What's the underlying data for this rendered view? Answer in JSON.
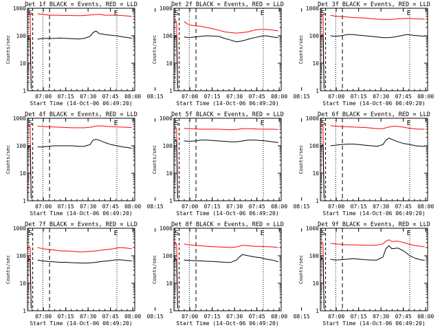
{
  "chart_data": [
    {
      "type": "line",
      "title": "Det 1f BLACK = Events, RED = LLD",
      "ylabel": "Counts/sec",
      "xlabel": "Start Time (14-Oct-06 06:49:20)",
      "x_ticks": [
        "07:00",
        "07:15",
        "07:30",
        "07:45",
        "08:00",
        "08:15"
      ],
      "y_scale": "log",
      "ylim": [
        1,
        1000
      ],
      "y_ticks": [
        "1",
        "10",
        "100",
        "1000"
      ],
      "markers": [
        "S",
        "E"
      ],
      "series": [
        {
          "name": "LLD",
          "color": "#ff0000",
          "x": [
            6.8,
            10,
            12,
            16,
            20,
            24,
            28,
            32,
            36,
            40,
            44,
            48,
            52,
            56,
            60,
            64,
            68,
            70
          ],
          "y": [
            620,
            600,
            580,
            560,
            560,
            550,
            550,
            540,
            540,
            560,
            580,
            600,
            560,
            560,
            560,
            540,
            520,
            500
          ]
        },
        {
          "name": "Events",
          "color": "#000000",
          "x": [
            6.8,
            10,
            14,
            18,
            22,
            26,
            30,
            34,
            38,
            42,
            44,
            46,
            48,
            52,
            56,
            60,
            64,
            68,
            70
          ],
          "y": [
            75,
            80,
            80,
            80,
            82,
            80,
            78,
            76,
            80,
            95,
            130,
            150,
            120,
            110,
            105,
            100,
            90,
            85,
            80
          ]
        }
      ]
    },
    {
      "type": "line",
      "title": "Det 2f BLACK = Events, RED = LLD",
      "ylabel": "Counts/sec",
      "xlabel": "Start Time (14-Oct-06 06:49:20)",
      "x_ticks": [
        "07:00",
        "07:15",
        "07:30",
        "07:45",
        "08:00",
        "08:15"
      ],
      "y_scale": "log",
      "ylim": [
        1,
        1000
      ],
      "y_ticks": [
        "1",
        "10",
        "100",
        "1000"
      ],
      "markers": [
        "S",
        "E"
      ],
      "series": [
        {
          "name": "LLD",
          "color": "#ff0000",
          "x": [
            6.8,
            10,
            14,
            18,
            22,
            26,
            30,
            34,
            38,
            42,
            46,
            50,
            54,
            58,
            62,
            66,
            70
          ],
          "y": [
            330,
            250,
            230,
            220,
            200,
            180,
            160,
            140,
            130,
            125,
            130,
            140,
            160,
            170,
            170,
            160,
            150
          ]
        },
        {
          "name": "Events",
          "color": "#000000",
          "x": [
            6.8,
            10,
            14,
            18,
            22,
            26,
            30,
            34,
            38,
            42,
            46,
            50,
            54,
            58,
            62,
            66,
            70
          ],
          "y": [
            90,
            85,
            90,
            95,
            100,
            98,
            95,
            80,
            70,
            60,
            65,
            75,
            85,
            95,
            100,
            90,
            85
          ]
        }
      ]
    },
    {
      "type": "line",
      "title": "Det 3f BLACK = Events, RED = LLD",
      "ylabel": "Counts/sec",
      "xlabel": "Start Time (14-Oct-06 06:49:20)",
      "x_ticks": [
        "07:00",
        "07:15",
        "07:30",
        "07:45",
        "08:00",
        "08:15"
      ],
      "y_scale": "log",
      "ylim": [
        1,
        1000
      ],
      "y_ticks": [
        "1",
        "10",
        "100",
        "1000"
      ],
      "markers": [
        "S",
        "E"
      ],
      "series": [
        {
          "name": "LLD",
          "color": "#ff0000",
          "x": [
            6.8,
            10,
            14,
            18,
            22,
            26,
            30,
            34,
            38,
            42,
            46,
            50,
            54,
            58,
            62,
            66,
            70
          ],
          "y": [
            550,
            520,
            500,
            480,
            460,
            450,
            440,
            420,
            400,
            390,
            390,
            400,
            420,
            430,
            420,
            410,
            400
          ]
        },
        {
          "name": "Events",
          "color": "#000000",
          "x": [
            6.8,
            10,
            14,
            18,
            22,
            26,
            30,
            34,
            38,
            42,
            46,
            50,
            54,
            58,
            62,
            66,
            70
          ],
          "y": [
            100,
            95,
            100,
            110,
            110,
            105,
            100,
            95,
            90,
            85,
            85,
            90,
            100,
            110,
            105,
            100,
            95
          ]
        }
      ]
    },
    {
      "type": "line",
      "title": "Det 4f BLACK = Events, RED = LLD",
      "ylabel": "Counts/sec",
      "xlabel": "Start Time (14-Oct-06 06:49:20)",
      "x_ticks": [
        "07:00",
        "07:15",
        "07:30",
        "07:45",
        "08:00",
        "08:15"
      ],
      "y_scale": "log",
      "ylim": [
        1,
        1000
      ],
      "y_ticks": [
        "1",
        "10",
        "100",
        "1000"
      ],
      "markers": [
        "S",
        "E"
      ],
      "series": [
        {
          "name": "LLD",
          "color": "#ff0000",
          "x": [
            6.8,
            10,
            14,
            18,
            22,
            26,
            30,
            34,
            38,
            42,
            46,
            50,
            54,
            58,
            62,
            66,
            70
          ],
          "y": [
            520,
            500,
            490,
            480,
            470,
            460,
            450,
            450,
            450,
            470,
            520,
            530,
            500,
            490,
            480,
            470,
            460
          ]
        },
        {
          "name": "Events",
          "color": "#000000",
          "x": [
            6.8,
            10,
            14,
            18,
            22,
            26,
            30,
            34,
            38,
            42,
            44,
            46,
            48,
            52,
            56,
            60,
            64,
            68,
            70
          ],
          "y": [
            90,
            90,
            95,
            100,
            100,
            100,
            100,
            95,
            95,
            110,
            160,
            170,
            160,
            130,
            110,
            100,
            90,
            85,
            80
          ]
        }
      ]
    },
    {
      "type": "line",
      "title": "Det 5f BLACK = Events, RED = LLD",
      "ylabel": "Counts/sec",
      "xlabel": "Start Time (14-Oct-06 06:49:20)",
      "x_ticks": [
        "07:00",
        "07:15",
        "07:30",
        "07:45",
        "08:00",
        "08:15"
      ],
      "y_scale": "log",
      "ylim": [
        1,
        1000
      ],
      "y_ticks": [
        "1",
        "10",
        "100",
        "1000"
      ],
      "markers": [
        "S",
        "E"
      ],
      "series": [
        {
          "name": "LLD",
          "color": "#ff0000",
          "x": [
            6.8,
            10,
            14,
            18,
            22,
            26,
            30,
            34,
            38,
            42,
            46,
            50,
            54,
            58,
            62,
            66,
            70
          ],
          "y": [
            430,
            420,
            410,
            400,
            400,
            400,
            400,
            390,
            380,
            390,
            420,
            420,
            410,
            400,
            400,
            400,
            390
          ]
        },
        {
          "name": "Events",
          "color": "#000000",
          "x": [
            6.8,
            10,
            14,
            18,
            22,
            26,
            30,
            34,
            38,
            42,
            46,
            50,
            54,
            58,
            62,
            66,
            70
          ],
          "y": [
            150,
            145,
            150,
            160,
            160,
            155,
            150,
            145,
            140,
            140,
            150,
            160,
            160,
            155,
            150,
            140,
            130
          ]
        }
      ]
    },
    {
      "type": "line",
      "title": "Det 6f BLACK = Events, RED = LLD",
      "ylabel": "Counts/sec",
      "xlabel": "Start Time (14-Oct-06 06:49:20)",
      "x_ticks": [
        "07:00",
        "07:15",
        "07:30",
        "07:45",
        "08:00",
        "08:15"
      ],
      "y_scale": "log",
      "ylim": [
        1,
        1000
      ],
      "y_ticks": [
        "1",
        "10",
        "100",
        "1000"
      ],
      "markers": [
        "S",
        "E"
      ],
      "series": [
        {
          "name": "LLD",
          "color": "#ff0000",
          "x": [
            6.8,
            10,
            14,
            18,
            22,
            26,
            30,
            34,
            38,
            42,
            46,
            50,
            54,
            58,
            62,
            66,
            70
          ],
          "y": [
            540,
            520,
            500,
            490,
            480,
            470,
            460,
            440,
            420,
            420,
            480,
            520,
            490,
            450,
            420,
            400,
            400
          ]
        },
        {
          "name": "Events",
          "color": "#000000",
          "x": [
            6.8,
            10,
            14,
            18,
            22,
            26,
            30,
            34,
            38,
            42,
            44,
            46,
            48,
            52,
            56,
            60,
            64,
            68,
            70
          ],
          "y": [
            100,
            105,
            110,
            115,
            115,
            110,
            105,
            100,
            95,
            110,
            160,
            190,
            170,
            140,
            120,
            110,
            100,
            95,
            95
          ]
        }
      ]
    },
    {
      "type": "line",
      "title": "Det 7f BLACK = Events, RED = LLD",
      "ylabel": "Counts/sec",
      "xlabel": "Start Time (14-Oct-06 06:49:20)",
      "x_ticks": [
        "07:00",
        "07:15",
        "07:30",
        "07:45",
        "08:00",
        "08:15"
      ],
      "y_scale": "log",
      "ylim": [
        1,
        1000
      ],
      "y_ticks": [
        "1",
        "10",
        "100",
        "1000"
      ],
      "markers": [
        "S",
        "E"
      ],
      "series": [
        {
          "name": "LLD",
          "color": "#ff0000",
          "x": [
            6.8,
            10,
            14,
            18,
            22,
            26,
            30,
            34,
            38,
            42,
            46,
            50,
            54,
            58,
            62,
            66,
            70
          ],
          "y": [
            200,
            180,
            170,
            160,
            150,
            150,
            145,
            140,
            140,
            145,
            150,
            160,
            170,
            180,
            200,
            190,
            180
          ]
        },
        {
          "name": "Events",
          "color": "#000000",
          "x": [
            6.8,
            10,
            14,
            18,
            22,
            26,
            30,
            34,
            38,
            42,
            46,
            50,
            54,
            58,
            62,
            66,
            70
          ],
          "y": [
            70,
            65,
            62,
            60,
            58,
            58,
            56,
            55,
            54,
            55,
            58,
            62,
            65,
            70,
            72,
            68,
            65
          ]
        }
      ]
    },
    {
      "type": "line",
      "title": "Det 8f BLACK = Events, RED = LLD",
      "ylabel": "Counts/sec",
      "xlabel": "Start Time (14-Oct-06 06:49:20)",
      "x_ticks": [
        "07:00",
        "07:15",
        "07:30",
        "07:45",
        "08:00",
        "08:15"
      ],
      "y_scale": "log",
      "ylim": [
        1,
        1000
      ],
      "y_ticks": [
        "1",
        "10",
        "100",
        "1000"
      ],
      "markers": [
        "S",
        "E"
      ],
      "series": [
        {
          "name": "LLD",
          "color": "#ff0000",
          "x": [
            6.8,
            10,
            14,
            18,
            22,
            26,
            30,
            34,
            38,
            42,
            46,
            50,
            54,
            58,
            62,
            66,
            70
          ],
          "y": [
            270,
            250,
            240,
            230,
            220,
            215,
            210,
            205,
            200,
            210,
            240,
            230,
            220,
            220,
            215,
            210,
            200
          ]
        },
        {
          "name": "Events",
          "color": "#000000",
          "x": [
            6.8,
            10,
            14,
            18,
            22,
            26,
            30,
            34,
            38,
            42,
            44,
            46,
            50,
            54,
            58,
            62,
            66,
            70
          ],
          "y": [
            70,
            68,
            66,
            65,
            63,
            62,
            60,
            58,
            57,
            70,
            90,
            110,
            100,
            90,
            85,
            75,
            70,
            60
          ]
        }
      ]
    },
    {
      "type": "line",
      "title": "Det 9f BLACK = Events, RED = LLD",
      "ylabel": "Counts/sec",
      "xlabel": "Start Time (14-Oct-06 06:49:20)",
      "x_ticks": [
        "07:00",
        "07:15",
        "07:30",
        "07:45",
        "08:00",
        "08:15"
      ],
      "y_scale": "log",
      "ylim": [
        1,
        1000
      ],
      "y_ticks": [
        "1",
        "10",
        "100",
        "1000"
      ],
      "markers": [
        "S",
        "E"
      ],
      "series": [
        {
          "name": "LLD",
          "color": "#ff0000",
          "x": [
            6.8,
            10,
            14,
            18,
            22,
            26,
            30,
            34,
            38,
            42,
            44,
            46,
            48,
            52,
            56,
            60,
            64,
            68,
            70
          ],
          "y": [
            280,
            270,
            260,
            250,
            250,
            245,
            240,
            240,
            245,
            270,
            340,
            380,
            330,
            340,
            300,
            260,
            230,
            220,
            210
          ]
        },
        {
          "name": "Events",
          "color": "#000000",
          "x": [
            6.8,
            10,
            14,
            18,
            22,
            26,
            30,
            34,
            38,
            42,
            44,
            46,
            48,
            52,
            56,
            60,
            64,
            68,
            70
          ],
          "y": [
            75,
            70,
            72,
            75,
            78,
            75,
            72,
            70,
            70,
            90,
            180,
            230,
            180,
            190,
            150,
            100,
            80,
            70,
            70
          ]
        }
      ]
    }
  ]
}
